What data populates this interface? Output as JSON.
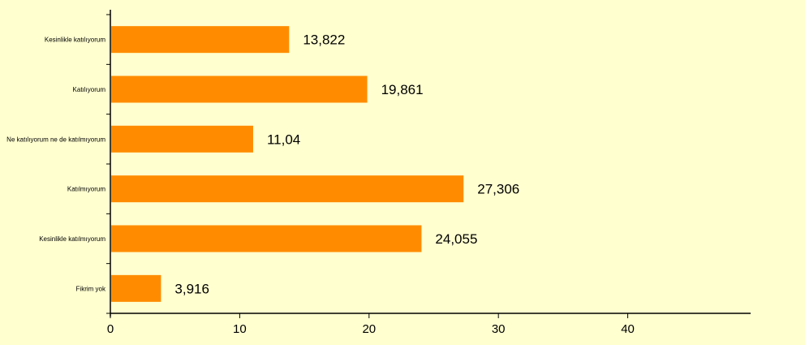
{
  "chart_data": {
    "type": "bar",
    "orientation": "horizontal",
    "categories": [
      "Kesinlikle katılıyorum",
      "Katılıyorum",
      "Ne katılıyorum ne de katılmıyorum",
      "Katılmıyorum",
      "Kesinlikle katılmıyorum",
      "Fikrim yok"
    ],
    "values": [
      13.822,
      19.861,
      11.04,
      27.306,
      24.055,
      3.916
    ],
    "value_labels": [
      "13,822",
      "19,861",
      "11,04",
      "27,306",
      "24,055",
      "3,916"
    ],
    "xlim": [
      0,
      49.5
    ],
    "xticks": [
      0,
      10,
      20,
      30,
      40
    ],
    "xtick_labels": [
      "0",
      "10",
      "20",
      "30",
      "40"
    ],
    "title": "",
    "xlabel": "",
    "ylabel": "",
    "grid": false,
    "legend": "none",
    "colors": {
      "bar": "#ff8c00",
      "background": "#ffffd0",
      "axis": "#000000"
    }
  }
}
